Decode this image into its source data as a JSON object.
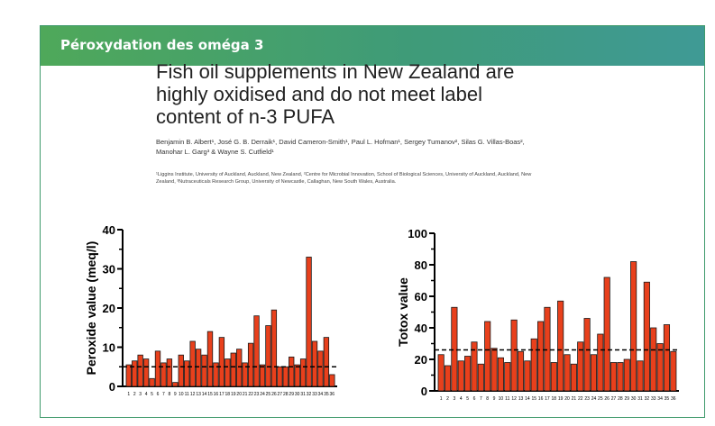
{
  "slide": {
    "banner_title": "Péroxydation des oméga 3",
    "paper_title": "Fish oil supplements in New Zealand are highly oxidised and do not meet label content of n-3 PUFA",
    "authors": "Benjamin B. Albert¹, José G. B. Derraik¹, David Cameron-Smith¹, Paul L. Hofman¹, Sergey Tumanov², Silas G. Villas-Boas², Manohar L. Garg³ & Wayne S. Cutfield¹",
    "affiliations": "¹Liggins Institute, University of Auckland, Auckland, New Zealand, ²Centre for Microbial Innovation, School of Biological Sciences, University of Auckland, Auckland, New Zealand, ³Nutraceuticals Research Group, University of Newcastle, Callaghan, New South Wales, Australia."
  },
  "colors": {
    "bar": "#e8401c",
    "banner_left": "#4fa85a",
    "banner_right": "#3f9a95",
    "frame": "#3f9a6b"
  },
  "chart_data": [
    {
      "type": "bar",
      "ylabel": "Peroxide value (meq/l)",
      "ylim": [
        0,
        40
      ],
      "yticks": [
        0,
        10,
        20,
        30,
        40
      ],
      "reference_line": 5,
      "categories": [
        "1",
        "2",
        "3",
        "4",
        "5",
        "6",
        "7",
        "8",
        "9",
        "10",
        "11",
        "12",
        "13",
        "14",
        "15",
        "16",
        "17",
        "18",
        "19",
        "20",
        "21",
        "22",
        "23",
        "24",
        "25",
        "26",
        "27",
        "28",
        "29",
        "30",
        "31",
        "32",
        "33",
        "34",
        "35",
        "36"
      ],
      "values": [
        5.5,
        6.5,
        8,
        7,
        2,
        9,
        6,
        7,
        1,
        8,
        6.5,
        11.5,
        9.5,
        8,
        14,
        6,
        12.5,
        7,
        8.5,
        9.5,
        6,
        11,
        18,
        5.5,
        15.5,
        19.5,
        5,
        5,
        7.5,
        5.5,
        7,
        33,
        11.5,
        9,
        12.5,
        3
      ]
    },
    {
      "type": "bar",
      "ylabel": "Totox value",
      "ylim": [
        0,
        100
      ],
      "yticks": [
        0,
        20,
        40,
        60,
        80,
        100
      ],
      "reference_line": 26,
      "categories": [
        "1",
        "2",
        "3",
        "4",
        "5",
        "6",
        "7",
        "8",
        "9",
        "10",
        "11",
        "12",
        "13",
        "14",
        "15",
        "16",
        "17",
        "18",
        "19",
        "20",
        "21",
        "22",
        "23",
        "24",
        "25",
        "26",
        "27",
        "28",
        "29",
        "30",
        "31",
        "32",
        "33",
        "34",
        "35",
        "36"
      ],
      "values": [
        23,
        16,
        53,
        19,
        22,
        31,
        17,
        44,
        27,
        21,
        18,
        45,
        25,
        19,
        33,
        44,
        53,
        18,
        57,
        23,
        17,
        31,
        46,
        23,
        36,
        72,
        18,
        18,
        20,
        82,
        19,
        69,
        40,
        30,
        42,
        25
      ]
    }
  ]
}
